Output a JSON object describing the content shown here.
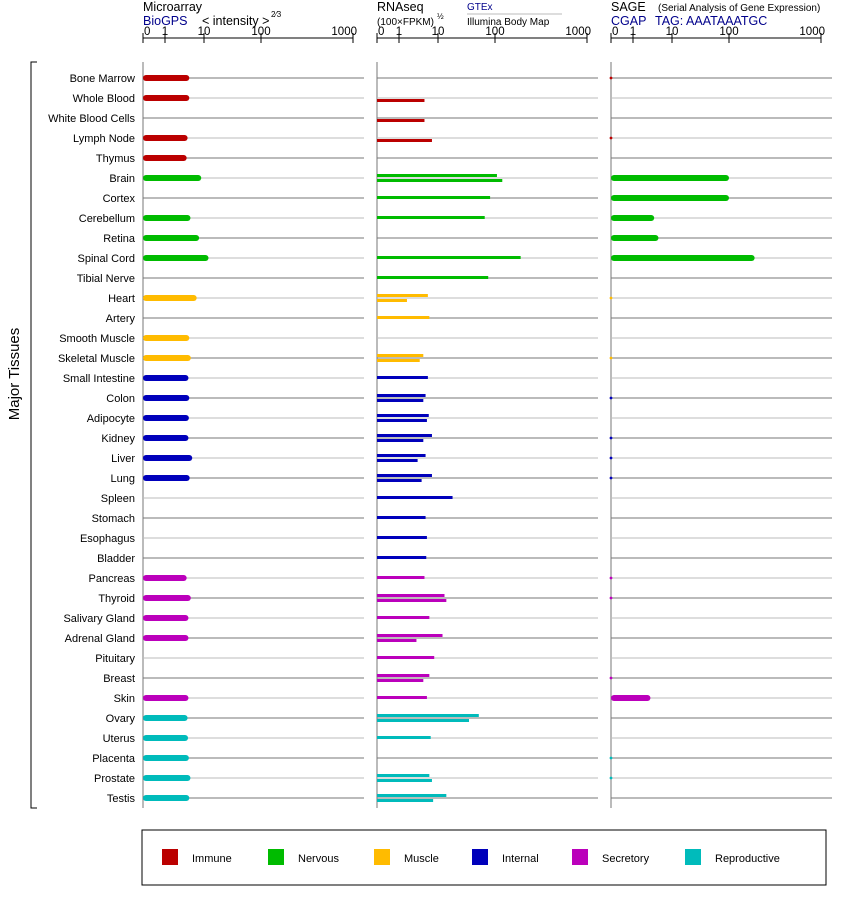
{
  "colors": {
    "Immune": "#bb0000",
    "Nervous": "#00bb00",
    "Muscle": "#ffbb00",
    "Internal": "#0000bb",
    "Secretory": "#bb00bb",
    "Reproductive": "#00bbbb"
  },
  "panels": {
    "microarray": {
      "title": "Microarray",
      "source": "BioGPS",
      "unit_label": "< intensity >",
      "unit_exponent": "2⁄3"
    },
    "rnaseq": {
      "title": "RNAseq",
      "unit_label": "(100×FPKM)",
      "unit_exponent": "½",
      "source_a": "GTEx",
      "source_b": "Illumina Body Map"
    },
    "sage": {
      "title": "SAGE",
      "subtitle": "(Serial Analysis of Gene Expression)",
      "source": "CGAP",
      "tag": "TAG: AAATAAATGC"
    }
  },
  "y_axis_title": "Major Tissues",
  "chart_data": {
    "type": "bar",
    "x_ticks": [
      "0",
      "1",
      "10",
      "100",
      "1000"
    ],
    "x_tick_values": [
      0,
      1,
      10,
      100,
      1000
    ],
    "tissues": [
      {
        "name": "Bone Marrow",
        "system": "Immune",
        "microarray": [
          4.2
        ],
        "rnaseq": [],
        "sage": [
          0.05
        ]
      },
      {
        "name": "Whole Blood",
        "system": "Immune",
        "microarray": [
          4.2
        ],
        "rnaseq": [
          0,
          4.5
        ],
        "sage": []
      },
      {
        "name": "White Blood Cells",
        "system": "Immune",
        "microarray": [],
        "rnaseq": [
          0,
          4.5
        ],
        "sage": []
      },
      {
        "name": "Lymph Node",
        "system": "Immune",
        "microarray": [
          3.8
        ],
        "rnaseq": [
          0,
          7
        ],
        "sage": [
          0.05
        ]
      },
      {
        "name": "Thymus",
        "system": "Immune",
        "microarray": [
          3.6
        ],
        "rnaseq": [],
        "sage": []
      },
      {
        "name": "Brain",
        "system": "Nervous",
        "microarray": [
          8.5
        ],
        "rnaseq": [
          105,
          120
        ],
        "sage": [
          100
        ]
      },
      {
        "name": "Cortex",
        "system": "Nervous",
        "microarray": [],
        "rnaseq": [
          82
        ],
        "sage": [
          100
        ]
      },
      {
        "name": "Cerebellum",
        "system": "Nervous",
        "microarray": [
          4.5
        ],
        "rnaseq": [
          66
        ],
        "sage": [
          3.5
        ]
      },
      {
        "name": "Retina",
        "system": "Nervous",
        "microarray": [
          7.5
        ],
        "rnaseq": [],
        "sage": [
          4.5
        ]
      },
      {
        "name": "Spinal Cord",
        "system": "Nervous",
        "microarray": [
          12
        ],
        "rnaseq": [
          190
        ],
        "sage": [
          190
        ]
      },
      {
        "name": "Tibial Nerve",
        "system": "Nervous",
        "microarray": [],
        "rnaseq": [
          76
        ],
        "sage": []
      },
      {
        "name": "Heart",
        "system": "Muscle",
        "microarray": [
          6.5
        ],
        "rnaseq": [
          5.5,
          1.6
        ],
        "sage": [
          0
        ]
      },
      {
        "name": "Artery",
        "system": "Muscle",
        "microarray": [],
        "rnaseq": [
          6
        ],
        "sage": []
      },
      {
        "name": "Smooth Muscle",
        "system": "Muscle",
        "microarray": [
          4.2
        ],
        "rnaseq": [],
        "sage": []
      },
      {
        "name": "Skeletal Muscle",
        "system": "Muscle",
        "microarray": [
          4.6
        ],
        "rnaseq": [
          4.2,
          3.4
        ],
        "sage": [
          0
        ]
      },
      {
        "name": "Small Intestine",
        "system": "Internal",
        "microarray": [
          4
        ],
        "rnaseq": [
          5.5
        ],
        "sage": []
      },
      {
        "name": "Colon",
        "system": "Internal",
        "microarray": [
          4.2
        ],
        "rnaseq": [
          4.8,
          4.2
        ],
        "sage": [
          0.05
        ]
      },
      {
        "name": "Adipocyte",
        "system": "Internal",
        "microarray": [
          4.1
        ],
        "rnaseq": [
          5.8,
          5.2
        ],
        "sage": []
      },
      {
        "name": "Kidney",
        "system": "Internal",
        "microarray": [
          4
        ],
        "rnaseq": [
          7,
          4.2
        ],
        "sage": [
          0.05
        ]
      },
      {
        "name": "Liver",
        "system": "Internal",
        "microarray": [
          5
        ],
        "rnaseq": [
          4.8,
          3
        ],
        "sage": [
          0.05
        ]
      },
      {
        "name": "Lung",
        "system": "Internal",
        "microarray": [
          4.3
        ],
        "rnaseq": [
          7,
          3.8
        ],
        "sage": [
          0.05
        ]
      },
      {
        "name": "Spleen",
        "system": "Internal",
        "microarray": [],
        "rnaseq": [
          18
        ],
        "sage": []
      },
      {
        "name": "Stomach",
        "system": "Internal",
        "microarray": [],
        "rnaseq": [
          4.8
        ],
        "sage": []
      },
      {
        "name": "Esophagus",
        "system": "Internal",
        "microarray": [],
        "rnaseq": [
          5.2
        ],
        "sage": []
      },
      {
        "name": "Bladder",
        "system": "Internal",
        "microarray": [],
        "rnaseq": [
          5
        ],
        "sage": []
      },
      {
        "name": "Pancreas",
        "system": "Secretory",
        "microarray": [
          3.6
        ],
        "rnaseq": [
          4.5
        ],
        "sage": [
          0.05
        ]
      },
      {
        "name": "Thyroid",
        "system": "Secretory",
        "microarray": [
          4.6
        ],
        "rnaseq": [
          13,
          14
        ],
        "sage": [
          0.05
        ]
      },
      {
        "name": "Salivary Gland",
        "system": "Secretory",
        "microarray": [
          4
        ],
        "rnaseq": [
          6
        ],
        "sage": []
      },
      {
        "name": "Adrenal Gland",
        "system": "Secretory",
        "microarray": [
          4
        ],
        "rnaseq": [
          12,
          2.8
        ],
        "sage": []
      },
      {
        "name": "Pituitary",
        "system": "Secretory",
        "microarray": [],
        "rnaseq": [
          8
        ],
        "sage": []
      },
      {
        "name": "Breast",
        "system": "Secretory",
        "microarray": [],
        "rnaseq": [
          6,
          4.2
        ],
        "sage": [
          0.05
        ]
      },
      {
        "name": "Skin",
        "system": "Secretory",
        "microarray": [
          4
        ],
        "rnaseq": [
          5.2
        ],
        "sage": [
          2.8
        ]
      },
      {
        "name": "Ovary",
        "system": "Reproductive",
        "microarray": [
          3.8
        ],
        "rnaseq": [
          52,
          35
        ],
        "sage": []
      },
      {
        "name": "Uterus",
        "system": "Reproductive",
        "microarray": [
          3.9
        ],
        "rnaseq": [
          6.5
        ],
        "sage": []
      },
      {
        "name": "Placenta",
        "system": "Reproductive",
        "microarray": [
          4.1
        ],
        "rnaseq": [],
        "sage": [
          0.05
        ]
      },
      {
        "name": "Prostate",
        "system": "Reproductive",
        "microarray": [
          4.5
        ],
        "rnaseq": [
          6,
          7
        ],
        "sage": [
          0.05
        ]
      },
      {
        "name": "Testis",
        "system": "Reproductive",
        "microarray": [
          4.2
        ],
        "rnaseq": [
          14,
          7.5
        ],
        "sage": []
      }
    ],
    "legend": [
      "Immune",
      "Nervous",
      "Muscle",
      "Internal",
      "Secretory",
      "Reproductive"
    ]
  }
}
